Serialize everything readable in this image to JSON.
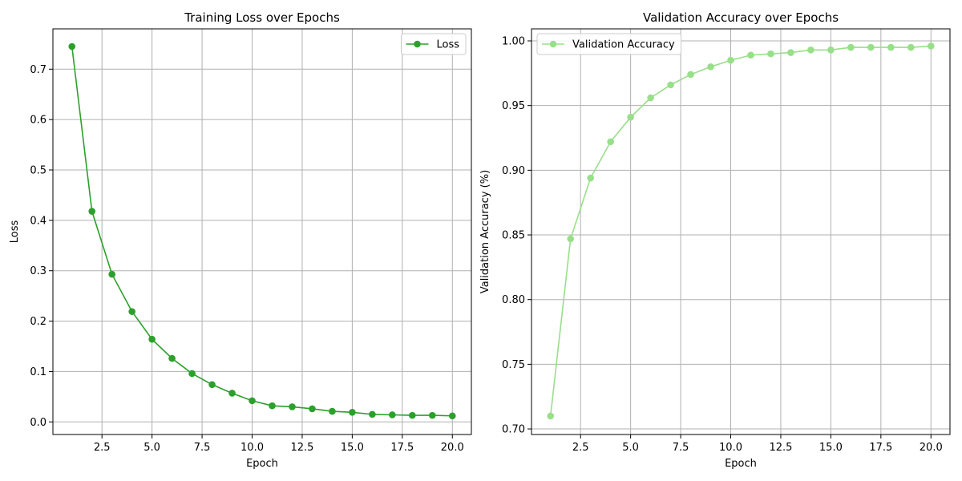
{
  "chart_data": [
    {
      "type": "line",
      "title": "Training Loss over Epochs",
      "xlabel": "Epoch",
      "ylabel": "Loss",
      "x": [
        1,
        2,
        3,
        4,
        5,
        6,
        7,
        8,
        9,
        10,
        11,
        12,
        13,
        14,
        15,
        16,
        17,
        18,
        19,
        20
      ],
      "series": [
        {
          "name": "Loss",
          "color": "#2ca02c",
          "values": [
            0.745,
            0.418,
            0.293,
            0.219,
            0.164,
            0.126,
            0.096,
            0.074,
            0.057,
            0.042,
            0.032,
            0.03,
            0.026,
            0.021,
            0.019,
            0.015,
            0.014,
            0.013,
            0.013,
            0.012
          ]
        }
      ],
      "xlim": [
        0.05,
        20.95
      ],
      "ylim": [
        -0.025,
        0.78
      ],
      "xticks": [
        2.5,
        5.0,
        7.5,
        10.0,
        12.5,
        15.0,
        17.5,
        20.0
      ],
      "xtick_labels": [
        "2.5",
        "5.0",
        "7.5",
        "10.0",
        "12.5",
        "15.0",
        "17.5",
        "20.0"
      ],
      "yticks": [
        0.0,
        0.1,
        0.2,
        0.3,
        0.4,
        0.5,
        0.6,
        0.7
      ],
      "ytick_labels": [
        "0.0",
        "0.1",
        "0.2",
        "0.3",
        "0.4",
        "0.5",
        "0.6",
        "0.7"
      ],
      "grid": true,
      "legend": "top-right"
    },
    {
      "type": "line",
      "title": "Validation Accuracy over Epochs",
      "xlabel": "Epoch",
      "ylabel": "Validation Accuracy (%)",
      "x": [
        1,
        2,
        3,
        4,
        5,
        6,
        7,
        8,
        9,
        10,
        11,
        12,
        13,
        14,
        15,
        16,
        17,
        18,
        19,
        20
      ],
      "series": [
        {
          "name": "Validation Accuracy",
          "color": "#98df8a",
          "values": [
            0.71,
            0.847,
            0.894,
            0.922,
            0.941,
            0.956,
            0.966,
            0.974,
            0.98,
            0.985,
            0.989,
            0.99,
            0.991,
            0.993,
            0.993,
            0.995,
            0.995,
            0.995,
            0.995,
            0.996
          ]
        }
      ],
      "xlim": [
        0.05,
        20.95
      ],
      "ylim": [
        0.6957,
        1.0093
      ],
      "xticks": [
        2.5,
        5.0,
        7.5,
        10.0,
        12.5,
        15.0,
        17.5,
        20.0
      ],
      "xtick_labels": [
        "2.5",
        "5.0",
        "7.5",
        "10.0",
        "12.5",
        "15.0",
        "17.5",
        "20.0"
      ],
      "yticks": [
        0.7,
        0.75,
        0.8,
        0.85,
        0.9,
        0.95,
        1.0
      ],
      "ytick_labels": [
        "0.70",
        "0.75",
        "0.80",
        "0.85",
        "0.90",
        "0.95",
        "1.00"
      ],
      "grid": true,
      "legend": "top-left"
    }
  ]
}
